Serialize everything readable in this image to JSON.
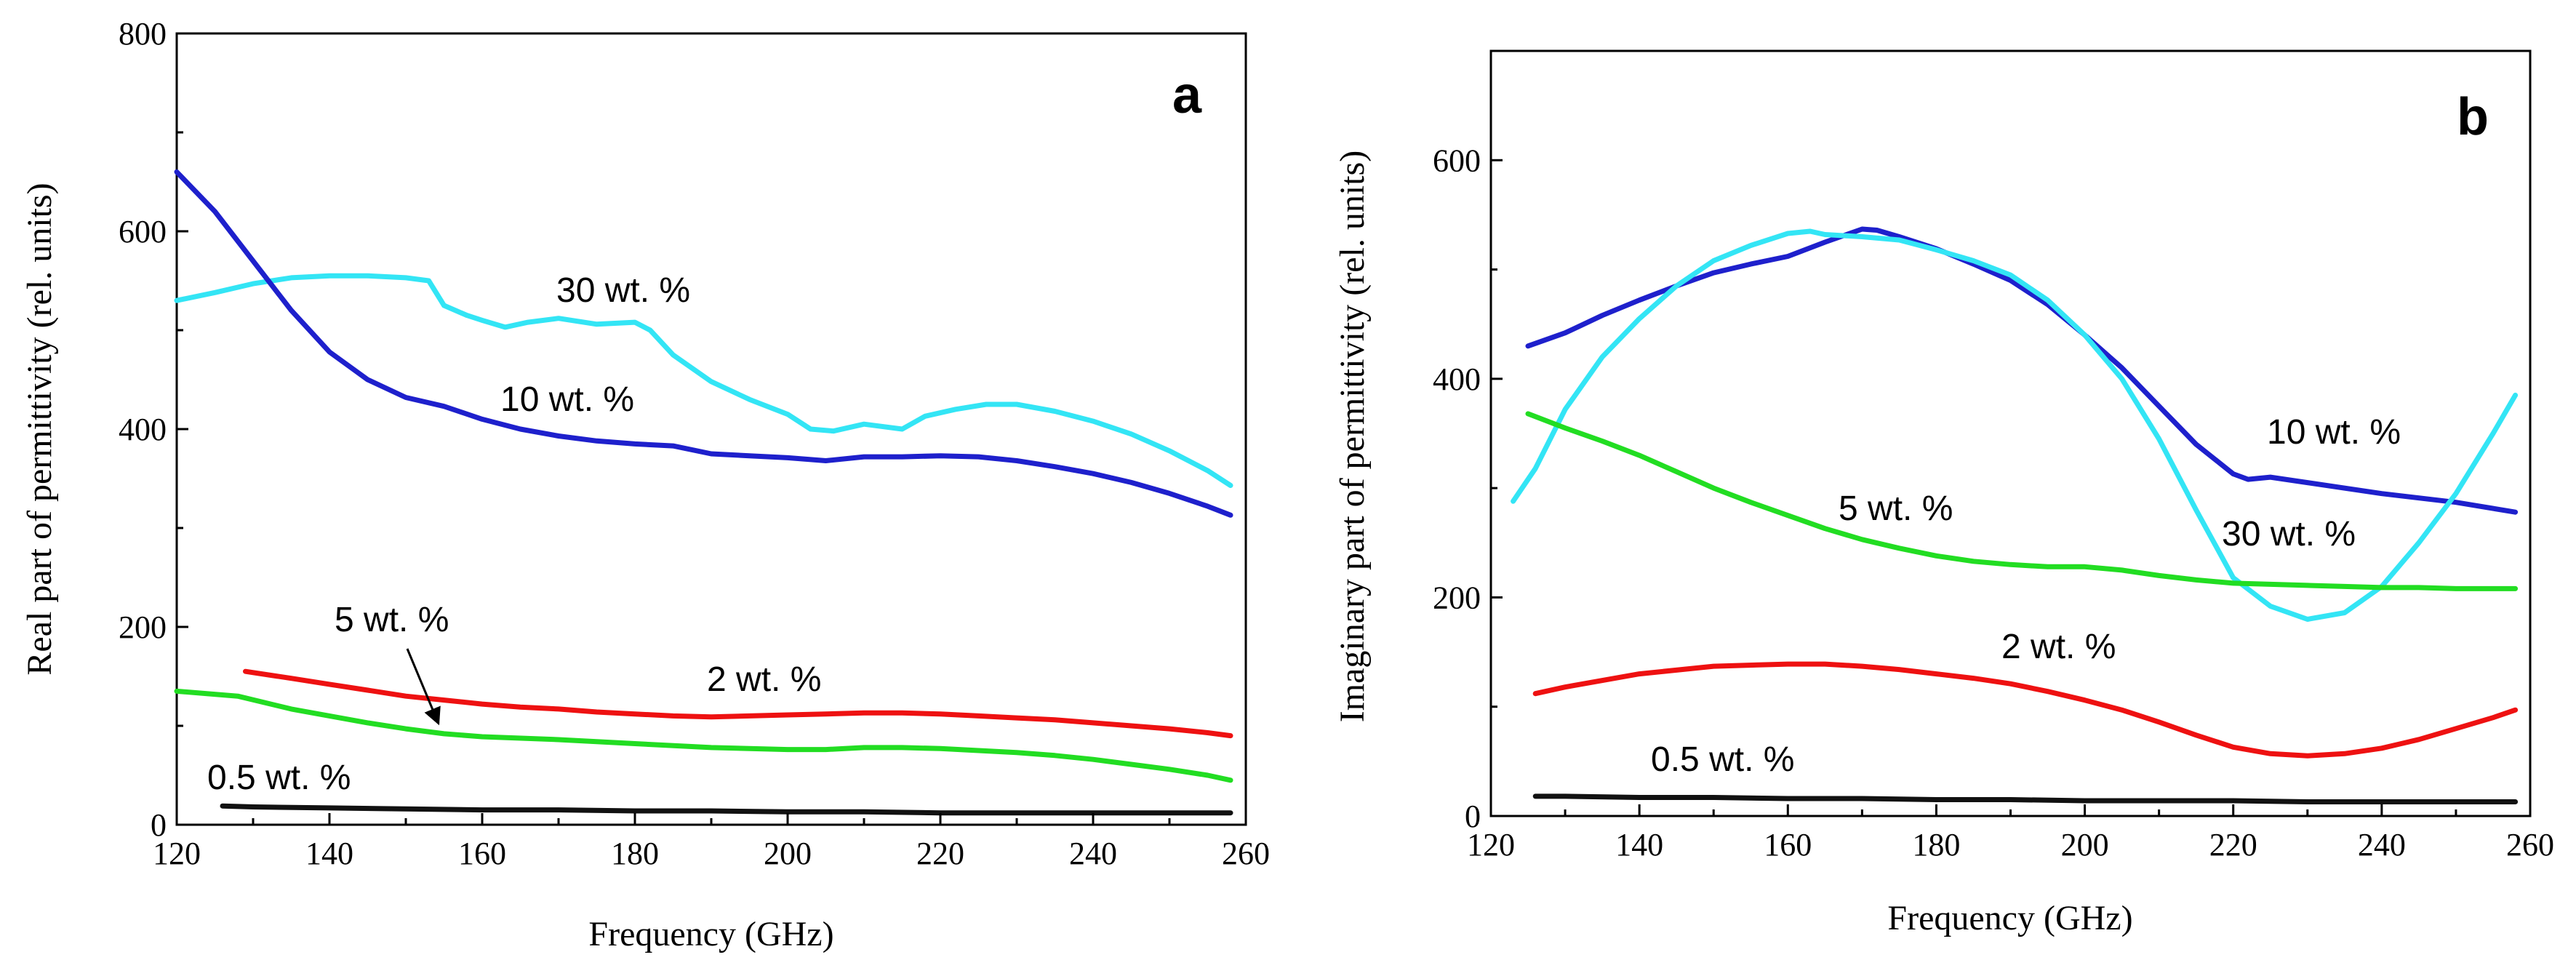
{
  "chart_data": [
    {
      "type": "line",
      "panel": "a",
      "xlabel": "Frequency (GHz)",
      "ylabel": "Real part of permittivity (rel. units)",
      "xlim": [
        120,
        260
      ],
      "ylim": [
        0,
        800
      ],
      "xticks": [
        120,
        140,
        160,
        180,
        200,
        220,
        240,
        260
      ],
      "yticks": [
        0,
        200,
        400,
        600,
        800
      ],
      "series": [
        {
          "name": "30 wt. %",
          "color": "#33e5f5",
          "x": [
            120,
            125,
            130,
            135,
            140,
            145,
            150,
            153,
            155,
            158,
            160,
            163,
            166,
            170,
            175,
            180,
            182,
            185,
            190,
            195,
            200,
            203,
            206,
            210,
            215,
            218,
            222,
            226,
            230,
            235,
            240,
            245,
            250,
            255,
            258
          ],
          "y": [
            530,
            538,
            547,
            553,
            555,
            555,
            553,
            550,
            525,
            515,
            510,
            503,
            508,
            512,
            506,
            508,
            500,
            475,
            448,
            430,
            415,
            400,
            398,
            405,
            400,
            413,
            420,
            425,
            425,
            418,
            408,
            395,
            378,
            358,
            343
          ]
        },
        {
          "name": "10 wt. %",
          "color": "#1e20cc",
          "x": [
            120,
            125,
            130,
            135,
            140,
            145,
            150,
            155,
            160,
            165,
            170,
            175,
            180,
            185,
            190,
            195,
            200,
            205,
            210,
            215,
            220,
            225,
            230,
            235,
            240,
            245,
            250,
            255,
            258
          ],
          "y": [
            660,
            620,
            570,
            520,
            478,
            450,
            432,
            423,
            410,
            400,
            393,
            388,
            385,
            383,
            375,
            373,
            371,
            368,
            372,
            372,
            373,
            372,
            368,
            362,
            355,
            346,
            335,
            322,
            313
          ]
        },
        {
          "name": "5 wt. %",
          "color": "#22dd22",
          "x": [
            120,
            128,
            135,
            140,
            145,
            150,
            155,
            160,
            170,
            180,
            190,
            200,
            205,
            210,
            215,
            220,
            225,
            230,
            235,
            240,
            245,
            250,
            255,
            258
          ],
          "y": [
            135,
            130,
            117,
            110,
            103,
            97,
            92,
            89,
            86,
            82,
            78,
            76,
            76,
            78,
            78,
            77,
            75,
            73,
            70,
            66,
            61,
            56,
            50,
            45
          ]
        },
        {
          "name": "2 wt. %",
          "color": "#ee1111",
          "x": [
            129,
            135,
            140,
            145,
            150,
            155,
            160,
            165,
            170,
            175,
            180,
            185,
            190,
            195,
            200,
            205,
            210,
            215,
            220,
            225,
            230,
            235,
            240,
            245,
            250,
            255,
            258
          ],
          "y": [
            155,
            148,
            142,
            136,
            130,
            126,
            122,
            119,
            117,
            114,
            112,
            110,
            109,
            110,
            111,
            112,
            113,
            113,
            112,
            110,
            108,
            106,
            103,
            100,
            97,
            93,
            90
          ]
        },
        {
          "name": "0.5 wt. %",
          "color": "#111111",
          "x": [
            126,
            130,
            140,
            150,
            160,
            170,
            180,
            190,
            200,
            210,
            220,
            230,
            240,
            250,
            258
          ],
          "y": [
            19,
            18,
            17,
            16,
            15,
            15,
            14,
            14,
            13,
            13,
            12,
            12,
            12,
            12,
            12
          ]
        }
      ],
      "annotations": [
        "30 wt. %",
        "10 wt. %",
        "5 wt. %",
        "2 wt. %",
        "0.5 wt. %"
      ]
    },
    {
      "type": "line",
      "panel": "b",
      "xlabel": "Frequency (GHz)",
      "ylabel": "Imaginary part of permittivity (rel. units)",
      "xlim": [
        120,
        260
      ],
      "ylim": [
        0,
        700
      ],
      "xticks": [
        120,
        140,
        160,
        180,
        200,
        220,
        240,
        260
      ],
      "yticks": [
        0,
        200,
        400,
        600
      ],
      "series": [
        {
          "name": "10 wt. %",
          "color": "#1e20cc",
          "x": [
            125,
            130,
            135,
            140,
            145,
            150,
            155,
            160,
            165,
            170,
            172,
            175,
            180,
            185,
            190,
            195,
            200,
            205,
            210,
            215,
            220,
            222,
            225,
            230,
            240,
            250,
            258
          ],
          "y": [
            430,
            442,
            458,
            472,
            485,
            497,
            505,
            512,
            525,
            537,
            536,
            530,
            519,
            505,
            490,
            468,
            440,
            410,
            375,
            340,
            313,
            308,
            310,
            305,
            295,
            287,
            278
          ]
        },
        {
          "name": "30 wt. %",
          "color": "#33e5f5",
          "x": [
            123,
            126,
            130,
            135,
            140,
            145,
            150,
            155,
            160,
            163,
            165,
            170,
            175,
            180,
            185,
            190,
            195,
            200,
            205,
            210,
            215,
            220,
            225,
            230,
            235,
            240,
            245,
            250,
            255,
            258
          ],
          "y": [
            288,
            318,
            372,
            420,
            455,
            485,
            508,
            522,
            533,
            535,
            532,
            530,
            527,
            518,
            508,
            495,
            472,
            440,
            400,
            345,
            280,
            218,
            192,
            180,
            186,
            210,
            250,
            295,
            350,
            385
          ]
        },
        {
          "name": "5 wt. %",
          "color": "#22dd22",
          "x": [
            125,
            130,
            135,
            140,
            145,
            150,
            155,
            160,
            165,
            170,
            175,
            180,
            185,
            190,
            195,
            200,
            205,
            210,
            215,
            220,
            225,
            230,
            235,
            240,
            245,
            250,
            255,
            258
          ],
          "y": [
            368,
            355,
            343,
            330,
            315,
            300,
            287,
            275,
            263,
            253,
            245,
            238,
            233,
            230,
            228,
            228,
            225,
            220,
            216,
            213,
            212,
            211,
            210,
            209,
            209,
            208,
            208,
            208
          ]
        },
        {
          "name": "2 wt. %",
          "color": "#ee1111",
          "x": [
            126,
            130,
            140,
            150,
            160,
            165,
            170,
            175,
            180,
            185,
            190,
            195,
            200,
            205,
            210,
            215,
            220,
            225,
            230,
            235,
            240,
            245,
            250,
            255,
            258
          ],
          "y": [
            112,
            118,
            130,
            137,
            139,
            139,
            137,
            134,
            130,
            126,
            121,
            114,
            106,
            97,
            86,
            74,
            63,
            57,
            55,
            57,
            62,
            70,
            80,
            90,
            97
          ]
        },
        {
          "name": "0.5 wt. %",
          "color": "#111111",
          "x": [
            126,
            130,
            140,
            150,
            160,
            170,
            180,
            190,
            200,
            210,
            220,
            230,
            240,
            250,
            258
          ],
          "y": [
            18,
            18,
            17,
            17,
            16,
            16,
            15,
            15,
            14,
            14,
            14,
            13,
            13,
            13,
            13
          ]
        }
      ],
      "annotations": [
        "10 wt. %",
        "5 wt. %",
        "30 wt. %",
        "2 wt. %",
        "0.5 wt. %"
      ]
    }
  ]
}
